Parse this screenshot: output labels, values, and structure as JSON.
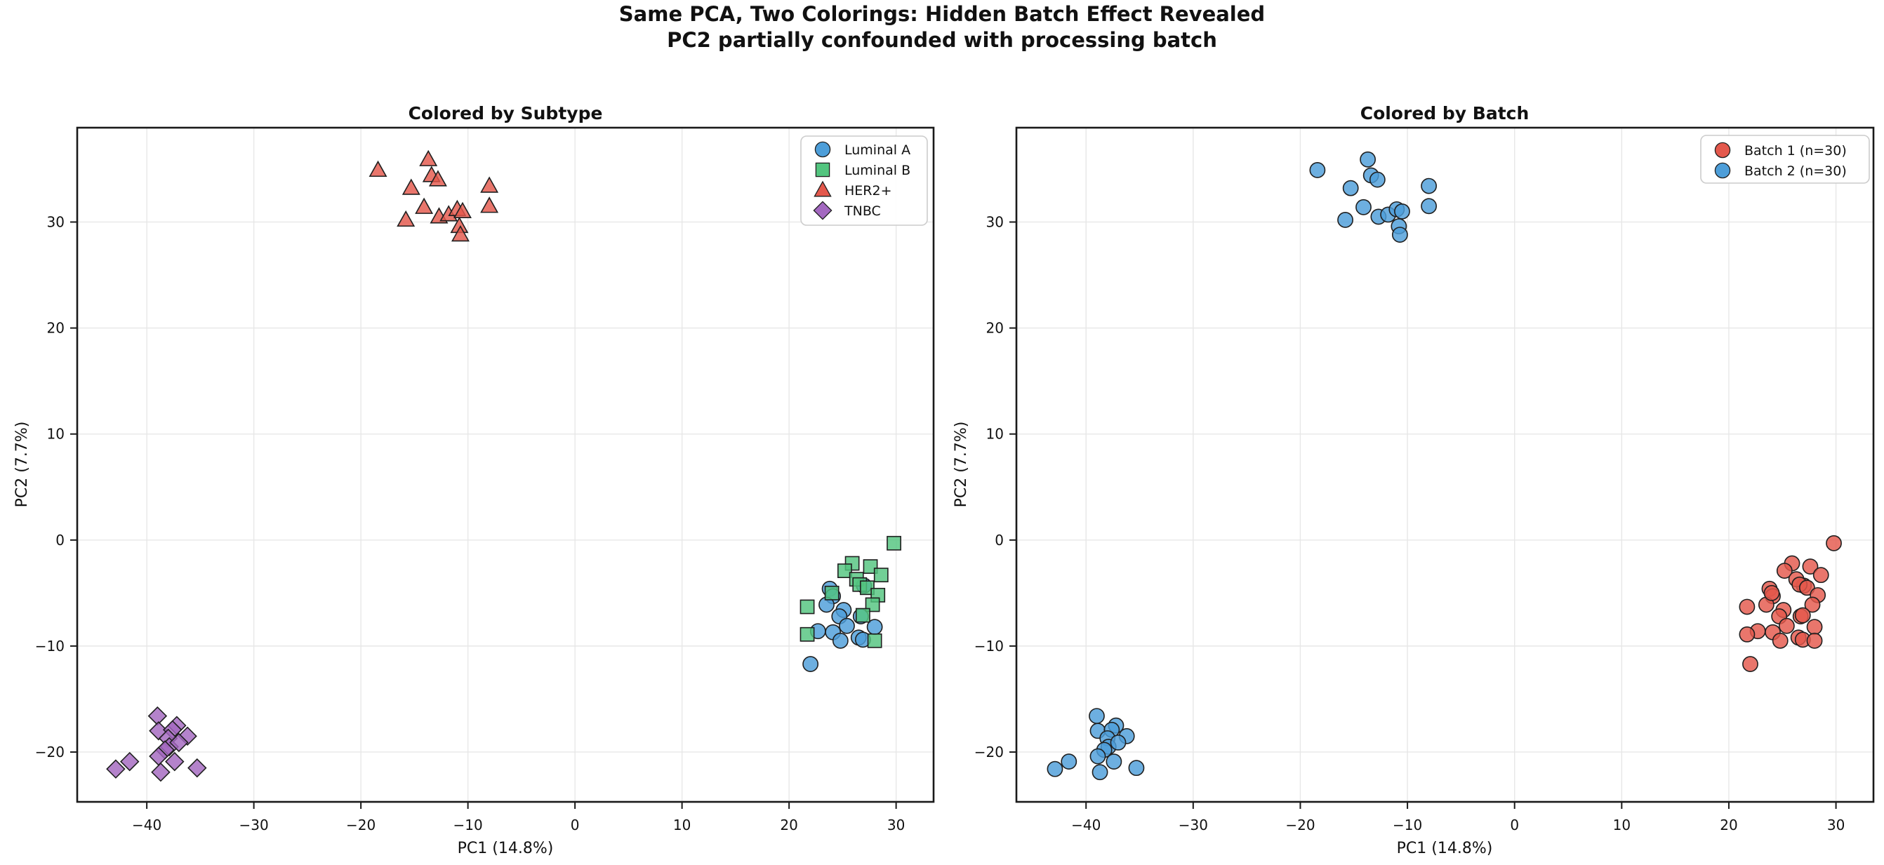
{
  "chart_data": {
    "type": "scatter",
    "suptitle_line1": "Same PCA, Two Colorings: Hidden Batch Effect Revealed",
    "suptitle_line2": "PC2 partially confounded with processing batch",
    "xlabel": "PC1 (14.8%)",
    "ylabel": "PC2 (7.7%)",
    "xlim": [
      -46.5,
      33.5
    ],
    "ylim": [
      -24.7,
      38.9
    ],
    "xticks": [
      -40,
      -30,
      -20,
      -10,
      0,
      10,
      20,
      30
    ],
    "yticks": [
      -20,
      -10,
      0,
      10,
      20,
      30
    ],
    "xtick_labels": [
      "−40",
      "−30",
      "−20",
      "−10",
      "0",
      "10",
      "20",
      "30"
    ],
    "ytick_labels": [
      "−20",
      "−10",
      "0",
      "10",
      "20",
      "30"
    ],
    "grid": true,
    "panels": [
      {
        "title": "Colored by Subtype",
        "color_by": "subtype",
        "legend_loc": "upper right",
        "legend": [
          {
            "key": "Luminal A",
            "label": "Luminal A",
            "marker": "circle",
            "color": "#4D9ED9"
          },
          {
            "key": "Luminal B",
            "label": "Luminal B",
            "marker": "square",
            "color": "#53C57F"
          },
          {
            "key": "HER2+",
            "label": "HER2+",
            "marker": "triangle",
            "color": "#E4584C"
          },
          {
            "key": "TNBC",
            "label": "TNBC",
            "marker": "diamond",
            "color": "#A368C0"
          }
        ]
      },
      {
        "title": "Colored by Batch",
        "color_by": "batch",
        "legend_loc": "upper right",
        "legend": [
          {
            "key": "Batch 1",
            "label": "Batch 1 (n=30)",
            "marker": "circle",
            "color": "#E4584C"
          },
          {
            "key": "Batch 2",
            "label": "Batch 2 (n=30)",
            "marker": "circle",
            "color": "#4D9ED9"
          }
        ]
      }
    ],
    "styles": {
      "subtype": {
        "Luminal A": {
          "marker": "circle",
          "color": "#4D9ED9"
        },
        "Luminal B": {
          "marker": "square",
          "color": "#53C57F"
        },
        "HER2+": {
          "marker": "triangle",
          "color": "#E4584C"
        },
        "TNBC": {
          "marker": "diamond",
          "color": "#A368C0"
        }
      },
      "batch": {
        "Batch 1": {
          "marker": "circle",
          "color": "#E4584C"
        },
        "Batch 2": {
          "marker": "circle",
          "color": "#4D9ED9"
        }
      },
      "edge_color": "#1f1f1f",
      "grid_color": "#e7e7e7",
      "spine_color": "#1a1a1a",
      "legend_border": "#cccccc",
      "fill_opacity": 0.82
    },
    "samples": [
      {
        "pc1": 23.8,
        "pc2": -4.6,
        "subtype": "Luminal A",
        "batch": "Batch 1"
      },
      {
        "pc1": 27.0,
        "pc2": -4.3,
        "subtype": "Luminal A",
        "batch": "Batch 1"
      },
      {
        "pc1": 24.1,
        "pc2": -5.3,
        "subtype": "Luminal A",
        "batch": "Batch 1"
      },
      {
        "pc1": 23.5,
        "pc2": -6.1,
        "subtype": "Luminal A",
        "batch": "Batch 1"
      },
      {
        "pc1": 25.1,
        "pc2": -6.6,
        "subtype": "Luminal A",
        "batch": "Batch 1"
      },
      {
        "pc1": 24.7,
        "pc2": -7.2,
        "subtype": "Luminal A",
        "batch": "Batch 1"
      },
      {
        "pc1": 26.7,
        "pc2": -7.2,
        "subtype": "Luminal A",
        "batch": "Batch 1"
      },
      {
        "pc1": 25.4,
        "pc2": -8.1,
        "subtype": "Luminal A",
        "batch": "Batch 1"
      },
      {
        "pc1": 28.0,
        "pc2": -8.2,
        "subtype": "Luminal A",
        "batch": "Batch 1"
      },
      {
        "pc1": 22.7,
        "pc2": -8.6,
        "subtype": "Luminal A",
        "batch": "Batch 1"
      },
      {
        "pc1": 24.1,
        "pc2": -8.7,
        "subtype": "Luminal A",
        "batch": "Batch 1"
      },
      {
        "pc1": 26.5,
        "pc2": -9.2,
        "subtype": "Luminal A",
        "batch": "Batch 1"
      },
      {
        "pc1": 24.8,
        "pc2": -9.5,
        "subtype": "Luminal A",
        "batch": "Batch 1"
      },
      {
        "pc1": 26.9,
        "pc2": -9.4,
        "subtype": "Luminal A",
        "batch": "Batch 1"
      },
      {
        "pc1": 22.0,
        "pc2": -11.7,
        "subtype": "Luminal A",
        "batch": "Batch 1"
      },
      {
        "pc1": 29.8,
        "pc2": -0.3,
        "subtype": "Luminal B",
        "batch": "Batch 1"
      },
      {
        "pc1": 25.9,
        "pc2": -2.2,
        "subtype": "Luminal B",
        "batch": "Batch 1"
      },
      {
        "pc1": 27.6,
        "pc2": -2.5,
        "subtype": "Luminal B",
        "batch": "Batch 1"
      },
      {
        "pc1": 25.2,
        "pc2": -2.9,
        "subtype": "Luminal B",
        "batch": "Batch 1"
      },
      {
        "pc1": 28.6,
        "pc2": -3.3,
        "subtype": "Luminal B",
        "batch": "Batch 1"
      },
      {
        "pc1": 26.3,
        "pc2": -3.7,
        "subtype": "Luminal B",
        "batch": "Batch 1"
      },
      {
        "pc1": 26.6,
        "pc2": -4.2,
        "subtype": "Luminal B",
        "batch": "Batch 1"
      },
      {
        "pc1": 27.3,
        "pc2": -4.5,
        "subtype": "Luminal B",
        "batch": "Batch 1"
      },
      {
        "pc1": 24.0,
        "pc2": -5.0,
        "subtype": "Luminal B",
        "batch": "Batch 1"
      },
      {
        "pc1": 28.3,
        "pc2": -5.2,
        "subtype": "Luminal B",
        "batch": "Batch 1"
      },
      {
        "pc1": 21.7,
        "pc2": -6.3,
        "subtype": "Luminal B",
        "batch": "Batch 1"
      },
      {
        "pc1": 27.8,
        "pc2": -6.1,
        "subtype": "Luminal B",
        "batch": "Batch 1"
      },
      {
        "pc1": 26.9,
        "pc2": -7.1,
        "subtype": "Luminal B",
        "batch": "Batch 1"
      },
      {
        "pc1": 21.7,
        "pc2": -8.9,
        "subtype": "Luminal B",
        "batch": "Batch 1"
      },
      {
        "pc1": 28.0,
        "pc2": -9.5,
        "subtype": "Luminal B",
        "batch": "Batch 1"
      },
      {
        "pc1": -18.4,
        "pc2": 34.9,
        "subtype": "HER2+",
        "batch": "Batch 2"
      },
      {
        "pc1": -13.7,
        "pc2": 35.9,
        "subtype": "HER2+",
        "batch": "Batch 2"
      },
      {
        "pc1": -13.4,
        "pc2": 34.4,
        "subtype": "HER2+",
        "batch": "Batch 2"
      },
      {
        "pc1": -12.8,
        "pc2": 34.0,
        "subtype": "HER2+",
        "batch": "Batch 2"
      },
      {
        "pc1": -15.3,
        "pc2": 33.2,
        "subtype": "HER2+",
        "batch": "Batch 2"
      },
      {
        "pc1": -14.1,
        "pc2": 31.4,
        "subtype": "HER2+",
        "batch": "Batch 2"
      },
      {
        "pc1": -8.0,
        "pc2": 33.4,
        "subtype": "HER2+",
        "batch": "Batch 2"
      },
      {
        "pc1": -8.0,
        "pc2": 31.5,
        "subtype": "HER2+",
        "batch": "Batch 2"
      },
      {
        "pc1": -15.8,
        "pc2": 30.2,
        "subtype": "HER2+",
        "batch": "Batch 2"
      },
      {
        "pc1": -12.7,
        "pc2": 30.5,
        "subtype": "HER2+",
        "batch": "Batch 2"
      },
      {
        "pc1": -11.8,
        "pc2": 30.7,
        "subtype": "HER2+",
        "batch": "Batch 2"
      },
      {
        "pc1": -11.0,
        "pc2": 31.2,
        "subtype": "HER2+",
        "batch": "Batch 2"
      },
      {
        "pc1": -10.5,
        "pc2": 31.0,
        "subtype": "HER2+",
        "batch": "Batch 2"
      },
      {
        "pc1": -10.8,
        "pc2": 29.6,
        "subtype": "HER2+",
        "batch": "Batch 2"
      },
      {
        "pc1": -10.7,
        "pc2": 28.8,
        "subtype": "HER2+",
        "batch": "Batch 2"
      },
      {
        "pc1": -39.0,
        "pc2": -16.6,
        "subtype": "TNBC",
        "batch": "Batch 2"
      },
      {
        "pc1": -38.9,
        "pc2": -18.0,
        "subtype": "TNBC",
        "batch": "Batch 2"
      },
      {
        "pc1": -37.2,
        "pc2": -17.5,
        "subtype": "TNBC",
        "batch": "Batch 2"
      },
      {
        "pc1": -37.6,
        "pc2": -17.9,
        "subtype": "TNBC",
        "batch": "Batch 2"
      },
      {
        "pc1": -36.2,
        "pc2": -18.5,
        "subtype": "TNBC",
        "batch": "Batch 2"
      },
      {
        "pc1": -38.0,
        "pc2": -18.7,
        "subtype": "TNBC",
        "batch": "Batch 2"
      },
      {
        "pc1": -37.9,
        "pc2": -19.5,
        "subtype": "TNBC",
        "batch": "Batch 2"
      },
      {
        "pc1": -38.3,
        "pc2": -19.8,
        "subtype": "TNBC",
        "batch": "Batch 2"
      },
      {
        "pc1": -37.0,
        "pc2": -19.1,
        "subtype": "TNBC",
        "batch": "Batch 2"
      },
      {
        "pc1": -38.9,
        "pc2": -20.4,
        "subtype": "TNBC",
        "batch": "Batch 2"
      },
      {
        "pc1": -37.4,
        "pc2": -20.9,
        "subtype": "TNBC",
        "batch": "Batch 2"
      },
      {
        "pc1": -41.6,
        "pc2": -20.9,
        "subtype": "TNBC",
        "batch": "Batch 2"
      },
      {
        "pc1": -42.9,
        "pc2": -21.6,
        "subtype": "TNBC",
        "batch": "Batch 2"
      },
      {
        "pc1": -38.7,
        "pc2": -21.9,
        "subtype": "TNBC",
        "batch": "Batch 2"
      },
      {
        "pc1": -35.3,
        "pc2": -21.5,
        "subtype": "TNBC",
        "batch": "Batch 2"
      }
    ]
  }
}
